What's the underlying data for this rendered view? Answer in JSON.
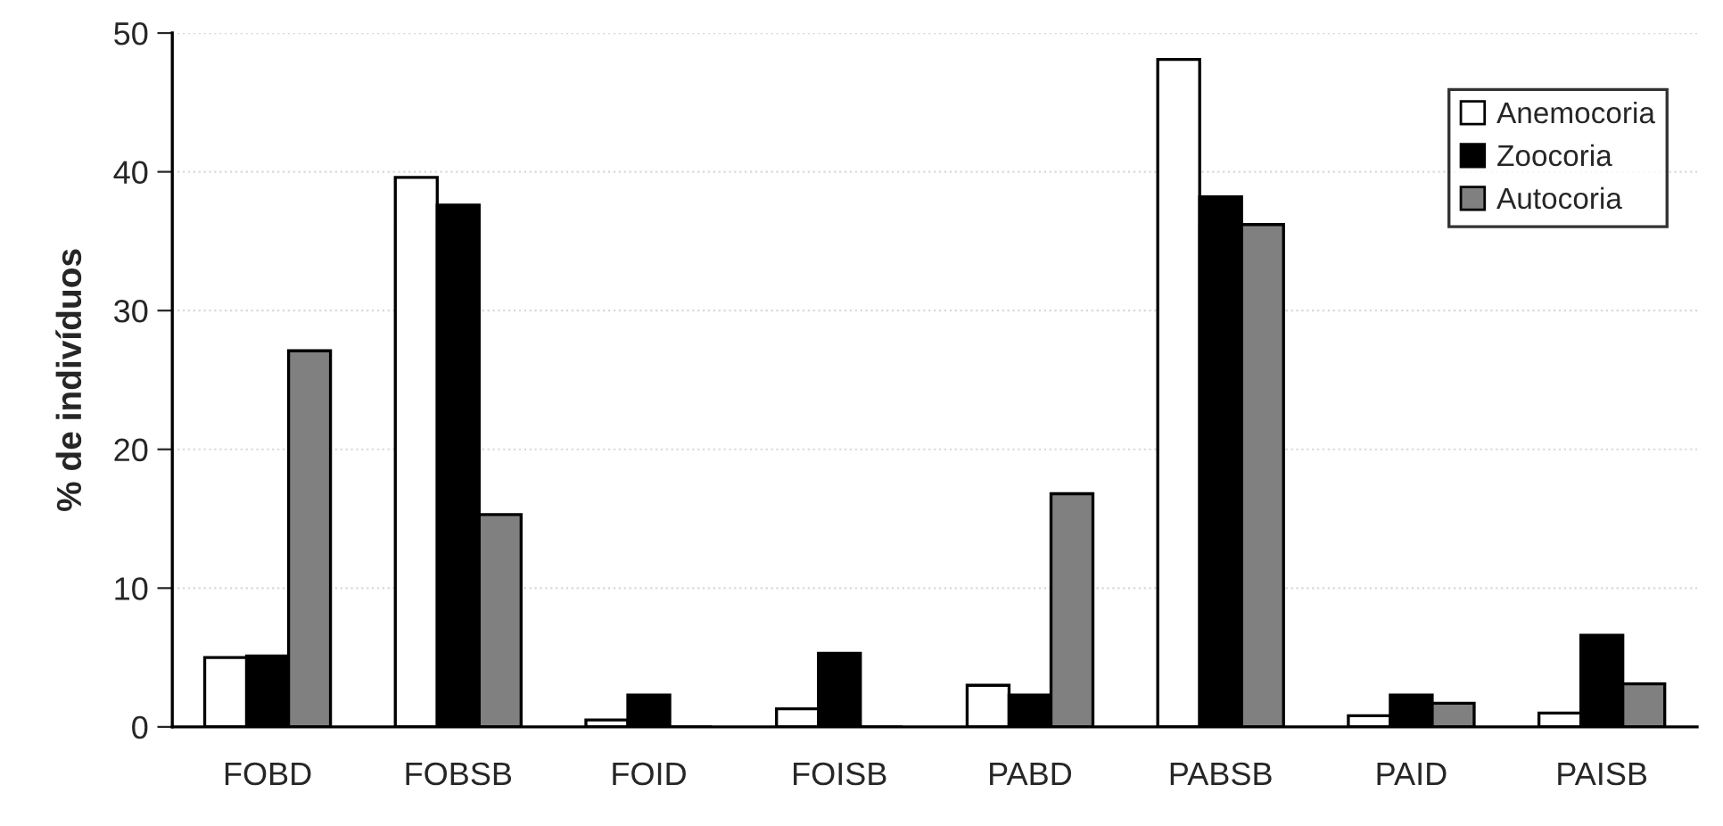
{
  "chart_data": {
    "type": "bar",
    "ylabel": "% de indivíduos",
    "categories": [
      "FOBD",
      "FOBSB",
      "FOID",
      "FOISB",
      "PABD",
      "PABSB",
      "PAID",
      "PAISB"
    ],
    "series": [
      {
        "name": "Anemocoria",
        "color": "#ffffff",
        "values": [
          5.0,
          39.6,
          0.5,
          1.3,
          3.0,
          48.1,
          0.8,
          1.0
        ]
      },
      {
        "name": "Zoocoria",
        "color": "#000000",
        "values": [
          5.1,
          37.6,
          2.3,
          5.3,
          2.3,
          38.2,
          2.3,
          6.6
        ]
      },
      {
        "name": "Autocoria",
        "color": "#808080",
        "values": [
          27.1,
          15.3,
          0,
          0,
          16.8,
          36.2,
          1.7,
          3.1
        ]
      }
    ],
    "ylim": [
      0,
      50
    ],
    "yticks": [
      0,
      10,
      20,
      30,
      40,
      50
    ],
    "grid": "y",
    "legend": "top right"
  }
}
